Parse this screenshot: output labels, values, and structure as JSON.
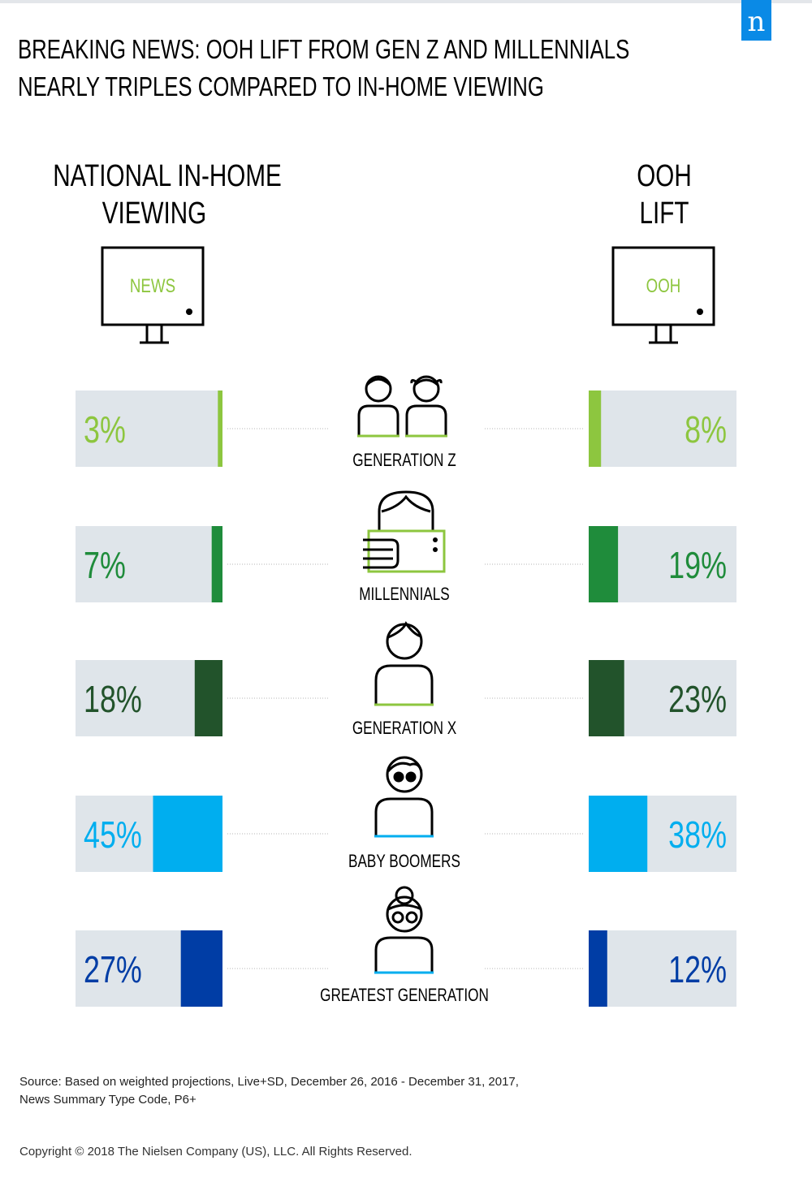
{
  "logo_text": "n",
  "title_lines": [
    "BREAKING NEWS: OOH LIFT FROM GEN Z AND MILLENNIALS",
    "NEARLY TRIPLES COMPARED TO IN-HOME VIEWING"
  ],
  "left_header": [
    "NATIONAL IN-HOME",
    "VIEWING"
  ],
  "right_header": [
    "OOH",
    "LIFT"
  ],
  "left_screen_text": "NEWS",
  "right_screen_text": "OOH",
  "chart_data": {
    "type": "bar",
    "categories": [
      "GENERATION Z",
      "MILLENNIALS",
      "GENERATION X",
      "BABY BOOMERS",
      "GREATEST GENERATION"
    ],
    "series": [
      {
        "name": "NATIONAL IN-HOME VIEWING",
        "values": [
          3,
          7,
          18,
          45,
          27
        ],
        "labels": [
          "3%",
          "7%",
          "18%",
          "45%",
          "27%"
        ]
      },
      {
        "name": "OOH LIFT",
        "values": [
          8,
          19,
          23,
          38,
          12
        ],
        "labels": [
          "8%",
          "19%",
          "23%",
          "38%",
          "12%"
        ]
      }
    ],
    "colors": [
      "#8dc63f",
      "#1f8c3b",
      "#22532b",
      "#00aeef",
      "#003da5"
    ],
    "track_color": "#dfe5ea",
    "ylim": [
      0,
      100
    ],
    "icons": [
      "two-children-icon",
      "person-with-tablet-icon",
      "adult-icon",
      "person-with-glasses-icon",
      "elder-with-glasses-icon"
    ]
  },
  "source_lines": [
    "Source: Based on weighted projections, Live+SD, December 26, 2016 - December 31, 2017,",
    "News Summary Type Code, P6+"
  ],
  "copyright": "Copyright © 2018 The Nielsen Company (US), LLC. All Rights Reserved."
}
